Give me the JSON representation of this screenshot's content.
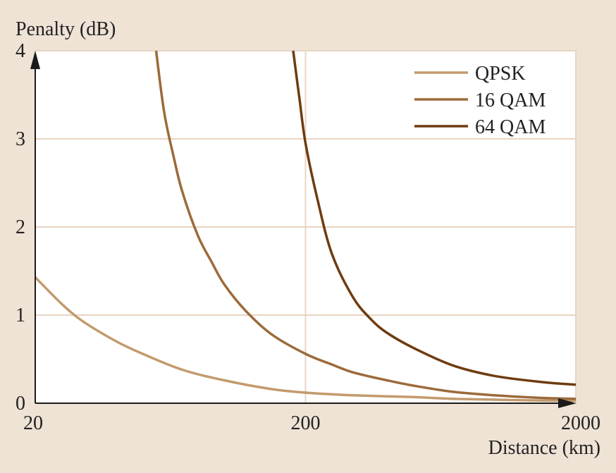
{
  "colors": {
    "background": "#efe3d6",
    "plot_background": "#ffffff",
    "grid": "#e6d5c3",
    "axis": "#1a1a1a"
  },
  "chart_data": {
    "type": "line",
    "xlabel": "Distance (km)",
    "ylabel": "Penalty (dB)",
    "x_scale": "log",
    "xlim": [
      20,
      2000
    ],
    "ylim": [
      0,
      4
    ],
    "x_ticks": [
      "20",
      "200",
      "2000"
    ],
    "y_ticks": [
      "0",
      "1",
      "2",
      "3",
      "4"
    ],
    "grid": true,
    "legend_position": "top-right",
    "series": [
      {
        "name": "QPSK",
        "color": "#c39a6e",
        "x": [
          20,
          25,
          30,
          40,
          50,
          70,
          100,
          150,
          200,
          300,
          500,
          700,
          1000,
          1500,
          2000
        ],
        "y": [
          1.43,
          1.13,
          0.93,
          0.7,
          0.56,
          0.38,
          0.26,
          0.16,
          0.12,
          0.09,
          0.07,
          0.05,
          0.04,
          0.03,
          0.03
        ]
      },
      {
        "name": "16 QAM",
        "color": "#9c6a3a",
        "x": [
          56,
          60,
          65,
          70,
          80,
          90,
          100,
          120,
          150,
          200,
          250,
          300,
          400,
          500,
          700,
          1000,
          1500,
          2000
        ],
        "y": [
          4.0,
          3.3,
          2.8,
          2.4,
          1.9,
          1.6,
          1.35,
          1.05,
          0.78,
          0.56,
          0.44,
          0.35,
          0.26,
          0.2,
          0.13,
          0.09,
          0.06,
          0.05
        ]
      },
      {
        "name": "64 QAM",
        "color": "#6e3c10",
        "x": [
          180,
          190,
          200,
          220,
          250,
          300,
          350,
          400,
          500,
          700,
          1000,
          1500,
          2000
        ],
        "y": [
          4.0,
          3.45,
          2.95,
          2.35,
          1.7,
          1.2,
          0.95,
          0.8,
          0.63,
          0.43,
          0.31,
          0.24,
          0.21
        ]
      }
    ]
  }
}
